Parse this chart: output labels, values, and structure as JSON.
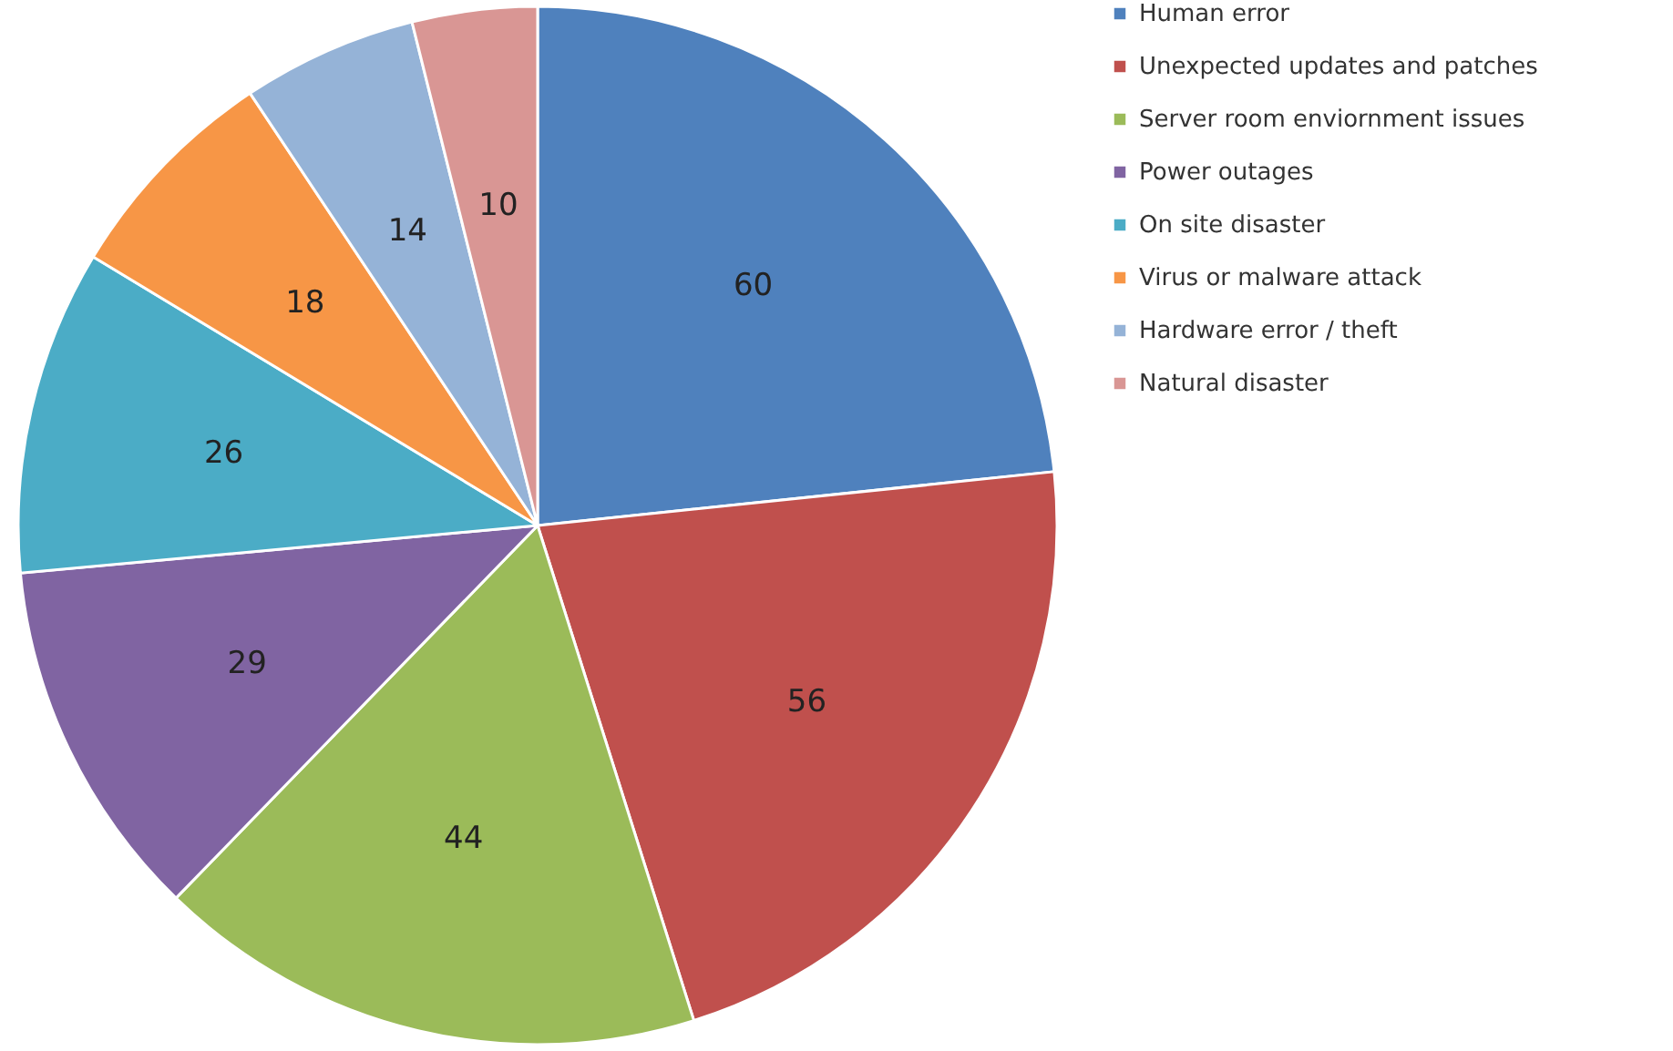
{
  "chart_data": {
    "type": "pie",
    "categories": [
      "Human error",
      "Unexpected updates and patches",
      "Server room enviornment issues",
      "Power outages",
      "On site disaster",
      "Virus or malware attack",
      "Hardware error / theft",
      "Natural disaster"
    ],
    "values": [
      60,
      56,
      44,
      29,
      26,
      18,
      14,
      10
    ],
    "colors": [
      "#4f81bd",
      "#c0504d",
      "#9bbb59",
      "#8064a2",
      "#4bacc6",
      "#f79646",
      "#95b3d7",
      "#d99694"
    ],
    "data_labels": true,
    "legend": "right"
  }
}
